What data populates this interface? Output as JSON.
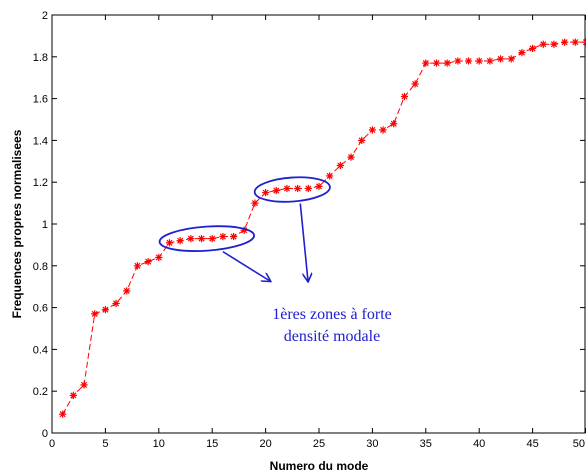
{
  "chart_data": {
    "type": "line",
    "xlabel": "Numero du mode",
    "ylabel": "Frequences propres normalisees",
    "xlim": [
      0,
      50
    ],
    "ylim": [
      0,
      2
    ],
    "xticks": [
      0,
      5,
      10,
      15,
      20,
      25,
      30,
      35,
      40,
      45,
      50
    ],
    "yticks": [
      0,
      0.2,
      0.4,
      0.6,
      0.8,
      1,
      1.2,
      1.4,
      1.6,
      1.8,
      2
    ],
    "ytick_labels": [
      "0",
      "0.2",
      "0.4",
      "0.6",
      "0.8",
      "1",
      "1.2",
      "1.4",
      "1.6",
      "1.8",
      "2"
    ],
    "grid": false,
    "series": [
      {
        "color": "#ff0000",
        "line_style": "dashed",
        "marker": "asterisk",
        "x": [
          1,
          2,
          3,
          4,
          5,
          6,
          7,
          8,
          9,
          10,
          11,
          12,
          13,
          14,
          15,
          16,
          17,
          18,
          19,
          20,
          21,
          22,
          23,
          24,
          25,
          26,
          27,
          28,
          29,
          30,
          31,
          32,
          33,
          34,
          35,
          36,
          37,
          38,
          39,
          40,
          41,
          42,
          43,
          44,
          45,
          46,
          47,
          48,
          49,
          50
        ],
        "y": [
          0.09,
          0.18,
          0.23,
          0.57,
          0.59,
          0.62,
          0.68,
          0.8,
          0.82,
          0.84,
          0.91,
          0.92,
          0.93,
          0.93,
          0.93,
          0.94,
          0.94,
          0.97,
          1.1,
          1.15,
          1.16,
          1.17,
          1.17,
          1.17,
          1.18,
          1.23,
          1.28,
          1.32,
          1.4,
          1.45,
          1.45,
          1.48,
          1.61,
          1.67,
          1.77,
          1.77,
          1.77,
          1.78,
          1.78,
          1.78,
          1.78,
          1.79,
          1.79,
          1.82,
          1.84,
          1.86,
          1.86,
          1.87,
          1.87,
          1.87
        ]
      }
    ],
    "annotations": {
      "text_line1": "1ères zones à forte",
      "text_line2": "densité modale",
      "color": "#2020d0",
      "ellipses": [
        {
          "x_from": 11,
          "x_to": 18,
          "y": 0.93
        },
        {
          "x_from": 20,
          "x_to": 25,
          "y": 1.165
        }
      ]
    }
  }
}
